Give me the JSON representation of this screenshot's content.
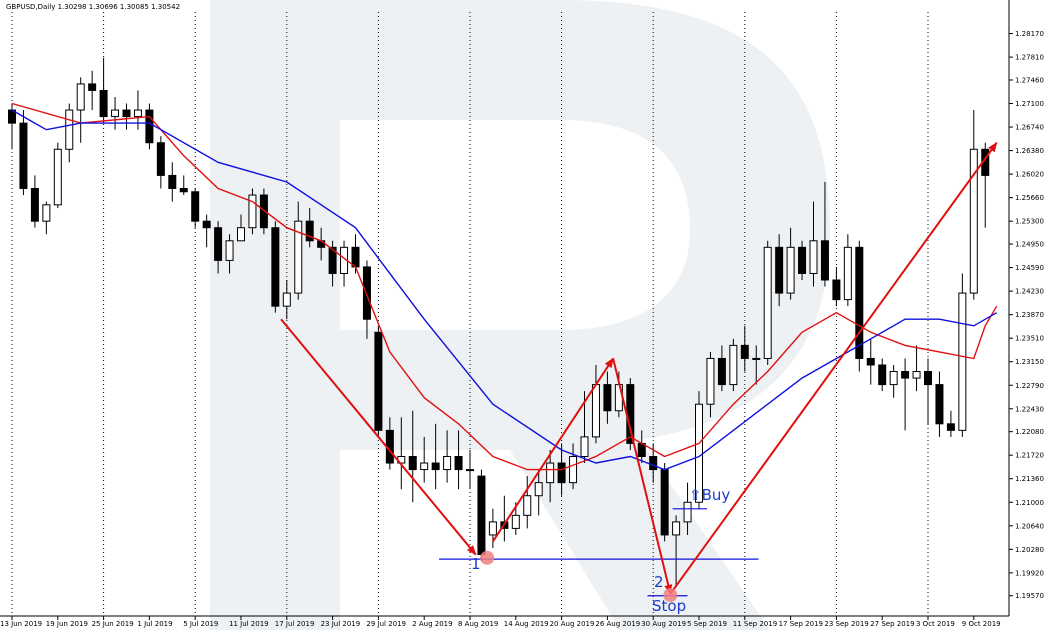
{
  "chart_data": {
    "type": "candlestick",
    "title": "GBPUSD,Daily  1.30298 1.30696 1.30085 1.30542",
    "ylim": [
      1.1926,
      1.285
    ],
    "y_ticks": [
      "1.28170",
      "1.27810",
      "1.27460",
      "1.27100",
      "1.26740",
      "1.26380",
      "1.26020",
      "1.25660",
      "1.25300",
      "1.24950",
      "1.24590",
      "1.24230",
      "1.23870",
      "1.23510",
      "1.23150",
      "1.22790",
      "1.22430",
      "1.22080",
      "1.21720",
      "1.21360",
      "1.21000",
      "1.20640",
      "1.20280",
      "1.19920",
      "1.19570"
    ],
    "x_tick_labels": [
      {
        "i": 0,
        "label": "13 Jun 2019"
      },
      {
        "i": 4,
        "label": "19 Jun 2019"
      },
      {
        "i": 8,
        "label": "25 Jun 2019"
      },
      {
        "i": 12,
        "label": "1 Jul 2019"
      },
      {
        "i": 16,
        "label": "5 Jul 2019"
      },
      {
        "i": 20,
        "label": "11 Jul 2019"
      },
      {
        "i": 24,
        "label": "17 Jul 2019"
      },
      {
        "i": 28,
        "label": "23 Jul 2019"
      },
      {
        "i": 32,
        "label": "29 Jul 2019"
      },
      {
        "i": 36,
        "label": "2 Aug 2019"
      },
      {
        "i": 40,
        "label": "8 Aug 2019"
      },
      {
        "i": 44,
        "label": "14 Aug 2019"
      },
      {
        "i": 48,
        "label": "20 Aug 2019"
      },
      {
        "i": 52,
        "label": "26 Aug 2019"
      },
      {
        "i": 56,
        "label": "30 Aug 2019"
      },
      {
        "i": 60,
        "label": "5 Sep 2019"
      },
      {
        "i": 64,
        "label": "11 Sep 2019"
      },
      {
        "i": 68,
        "label": "17 Sep 2019"
      },
      {
        "i": 72,
        "label": "23 Sep 2019"
      },
      {
        "i": 76,
        "label": "27 Sep 2019"
      },
      {
        "i": 80,
        "label": "3 Oct 2019"
      },
      {
        "i": 84,
        "label": "9 Oct 2019"
      }
    ],
    "candles": [
      [
        1.27,
        1.268,
        1.271,
        1.264
      ],
      [
        1.268,
        1.258,
        1.27,
        1.257
      ],
      [
        1.258,
        1.253,
        1.26,
        1.252
      ],
      [
        1.253,
        1.2555,
        1.256,
        1.251
      ],
      [
        1.2555,
        1.264,
        1.265,
        1.255
      ],
      [
        1.264,
        1.27,
        1.271,
        1.262
      ],
      [
        1.27,
        1.274,
        1.275,
        1.265
      ],
      [
        1.274,
        1.273,
        1.276,
        1.27
      ],
      [
        1.273,
        1.269,
        1.278,
        1.268
      ],
      [
        1.269,
        1.27,
        1.272,
        1.267
      ],
      [
        1.27,
        1.269,
        1.271,
        1.267
      ],
      [
        1.269,
        1.27,
        1.273,
        1.267
      ],
      [
        1.27,
        1.265,
        1.271,
        1.264
      ],
      [
        1.265,
        1.26,
        1.266,
        1.258
      ],
      [
        1.26,
        1.258,
        1.262,
        1.256
      ],
      [
        1.258,
        1.2575,
        1.26,
        1.257
      ],
      [
        1.2575,
        1.253,
        1.258,
        1.252
      ],
      [
        1.253,
        1.252,
        1.254,
        1.249
      ],
      [
        1.252,
        1.247,
        1.253,
        1.245
      ],
      [
        1.247,
        1.25,
        1.251,
        1.245
      ],
      [
        1.25,
        1.252,
        1.254,
        1.25
      ],
      [
        1.252,
        1.257,
        1.258,
        1.251
      ],
      [
        1.257,
        1.252,
        1.258,
        1.251
      ],
      [
        1.252,
        1.24,
        1.253,
        1.239
      ],
      [
        1.24,
        1.242,
        1.244,
        1.238
      ],
      [
        1.242,
        1.253,
        1.256,
        1.241
      ],
      [
        1.253,
        1.25,
        1.255,
        1.249
      ],
      [
        1.25,
        1.249,
        1.252,
        1.247
      ],
      [
        1.249,
        1.245,
        1.25,
        1.243
      ],
      [
        1.245,
        1.249,
        1.25,
        1.243
      ],
      [
        1.249,
        1.246,
        1.251,
        1.245
      ],
      [
        1.246,
        1.238,
        1.247,
        1.235
      ],
      [
        1.236,
        1.221,
        1.237,
        1.22
      ],
      [
        1.221,
        1.216,
        1.223,
        1.215
      ],
      [
        1.216,
        1.217,
        1.223,
        1.212
      ],
      [
        1.217,
        1.215,
        1.224,
        1.21
      ],
      [
        1.215,
        1.216,
        1.22,
        1.213
      ],
      [
        1.216,
        1.215,
        1.222,
        1.212
      ],
      [
        1.215,
        1.217,
        1.221,
        1.213
      ],
      [
        1.217,
        1.215,
        1.221,
        1.212
      ],
      [
        1.215,
        1.215,
        1.218,
        1.212
      ],
      [
        1.214,
        1.202,
        1.215,
        1.201
      ],
      [
        1.205,
        1.207,
        1.209,
        1.203
      ],
      [
        1.207,
        1.206,
        1.211,
        1.204
      ],
      [
        1.206,
        1.208,
        1.21,
        1.205
      ],
      [
        1.208,
        1.211,
        1.214,
        1.206
      ],
      [
        1.211,
        1.213,
        1.215,
        1.208
      ],
      [
        1.213,
        1.216,
        1.218,
        1.21
      ],
      [
        1.216,
        1.213,
        1.219,
        1.211
      ],
      [
        1.213,
        1.217,
        1.219,
        1.212
      ],
      [
        1.217,
        1.22,
        1.227,
        1.216
      ],
      [
        1.22,
        1.228,
        1.231,
        1.219
      ],
      [
        1.228,
        1.224,
        1.23,
        1.222
      ],
      [
        1.224,
        1.228,
        1.23,
        1.223
      ],
      [
        1.228,
        1.219,
        1.229,
        1.218
      ],
      [
        1.219,
        1.217,
        1.221,
        1.216
      ],
      [
        1.217,
        1.215,
        1.219,
        1.213
      ],
      [
        1.215,
        1.205,
        1.216,
        1.204
      ],
      [
        1.205,
        1.207,
        1.208,
        1.197
      ],
      [
        1.207,
        1.21,
        1.213,
        1.205
      ],
      [
        1.21,
        1.225,
        1.227,
        1.209
      ],
      [
        1.225,
        1.232,
        1.233,
        1.223
      ],
      [
        1.232,
        1.228,
        1.234,
        1.227
      ],
      [
        1.228,
        1.234,
        1.235,
        1.227
      ],
      [
        1.234,
        1.232,
        1.237,
        1.23
      ],
      [
        1.232,
        1.232,
        1.234,
        1.228
      ],
      [
        1.232,
        1.249,
        1.25,
        1.231
      ],
      [
        1.249,
        1.242,
        1.251,
        1.24
      ],
      [
        1.242,
        1.249,
        1.252,
        1.241
      ],
      [
        1.249,
        1.245,
        1.25,
        1.244
      ],
      [
        1.245,
        1.25,
        1.256,
        1.243
      ],
      [
        1.25,
        1.244,
        1.259,
        1.243
      ],
      [
        1.244,
        1.241,
        1.246,
        1.24
      ],
      [
        1.241,
        1.249,
        1.251,
        1.24
      ],
      [
        1.249,
        1.232,
        1.25,
        1.23
      ],
      [
        1.232,
        1.231,
        1.235,
        1.228
      ],
      [
        1.231,
        1.228,
        1.232,
        1.227
      ],
      [
        1.228,
        1.23,
        1.231,
        1.226
      ],
      [
        1.23,
        1.229,
        1.232,
        1.221
      ],
      [
        1.229,
        1.23,
        1.234,
        1.227
      ],
      [
        1.23,
        1.228,
        1.232,
        1.222
      ],
      [
        1.228,
        1.222,
        1.23,
        1.22
      ],
      [
        1.222,
        1.221,
        1.224,
        1.22
      ],
      [
        1.221,
        1.242,
        1.245,
        1.22
      ],
      [
        1.242,
        1.264,
        1.27,
        1.241
      ],
      [
        1.264,
        1.26,
        1.265,
        1.252
      ]
    ],
    "series": [
      {
        "color": "#e01010",
        "type": "line",
        "points": [
          [
            0,
            1.271
          ],
          [
            6,
            1.268
          ],
          [
            12,
            1.269
          ],
          [
            15,
            1.263
          ],
          [
            18,
            1.258
          ],
          [
            21,
            1.256
          ],
          [
            24,
            1.252
          ],
          [
            27,
            1.25
          ],
          [
            30,
            1.246
          ],
          [
            33,
            1.233
          ],
          [
            36,
            1.226
          ],
          [
            39,
            1.222
          ],
          [
            42,
            1.217
          ],
          [
            45,
            1.215
          ],
          [
            48,
            1.215
          ],
          [
            51,
            1.217
          ],
          [
            54,
            1.22
          ],
          [
            57,
            1.217
          ],
          [
            60,
            1.219
          ],
          [
            63,
            1.225
          ],
          [
            66,
            1.23
          ],
          [
            69,
            1.236
          ],
          [
            72,
            1.239
          ],
          [
            75,
            1.236
          ],
          [
            78,
            1.234
          ],
          [
            81,
            1.233
          ],
          [
            84,
            1.232
          ],
          [
            85,
            1.237
          ],
          [
            86,
            1.24
          ]
        ]
      },
      {
        "color": "#1010e0",
        "type": "line",
        "points": [
          [
            0,
            1.27
          ],
          [
            3,
            1.267
          ],
          [
            6,
            1.268
          ],
          [
            12,
            1.268
          ],
          [
            18,
            1.262
          ],
          [
            24,
            1.259
          ],
          [
            30,
            1.252
          ],
          [
            36,
            1.238
          ],
          [
            42,
            1.225
          ],
          [
            48,
            1.218
          ],
          [
            51,
            1.216
          ],
          [
            54,
            1.217
          ],
          [
            57,
            1.215
          ],
          [
            60,
            1.217
          ],
          [
            63,
            1.221
          ],
          [
            66,
            1.225
          ],
          [
            69,
            1.229
          ],
          [
            72,
            1.232
          ],
          [
            75,
            1.235
          ],
          [
            78,
            1.238
          ],
          [
            81,
            1.238
          ],
          [
            84,
            1.237
          ],
          [
            86,
            1.239
          ]
        ]
      }
    ],
    "trend_arrows": [
      {
        "from": [
          23.5,
          1.238
        ],
        "to": [
          40.5,
          1.202
        ]
      },
      {
        "from": [
          42,
          1.204
        ],
        "to": [
          52.5,
          1.232
        ]
      },
      {
        "from": [
          52.5,
          1.232
        ],
        "to": [
          57.5,
          1.196
        ]
      },
      {
        "from": [
          57.5,
          1.196
        ],
        "to": [
          86,
          1.265
        ]
      }
    ],
    "horizontal_lines": [
      {
        "x0": 37.3,
        "x1": 65.2,
        "y": 1.2013
      },
      {
        "x0": 57.7,
        "x1": 60.7,
        "y": 1.209
      },
      {
        "x0": 55.5,
        "x1": 59.0,
        "y": 1.1957
      }
    ],
    "markers": [
      {
        "x": 41.5,
        "y": 1.2015,
        "label": "1"
      },
      {
        "x": 57.5,
        "y": 1.1958,
        "label": "2"
      }
    ],
    "annotations": {
      "buy": "⇧Buy",
      "stop": "Stop",
      "point1": "1",
      "point2": "2"
    },
    "colors": {
      "bull_body": "#ffffff",
      "bear_body": "#000000",
      "candle_outline": "#000000",
      "arrow": "#e01010",
      "level_line": "#1010e0",
      "marker": "#f08080",
      "annotation_text": "#1a3cc8",
      "watermark": "#eef1f4"
    }
  }
}
